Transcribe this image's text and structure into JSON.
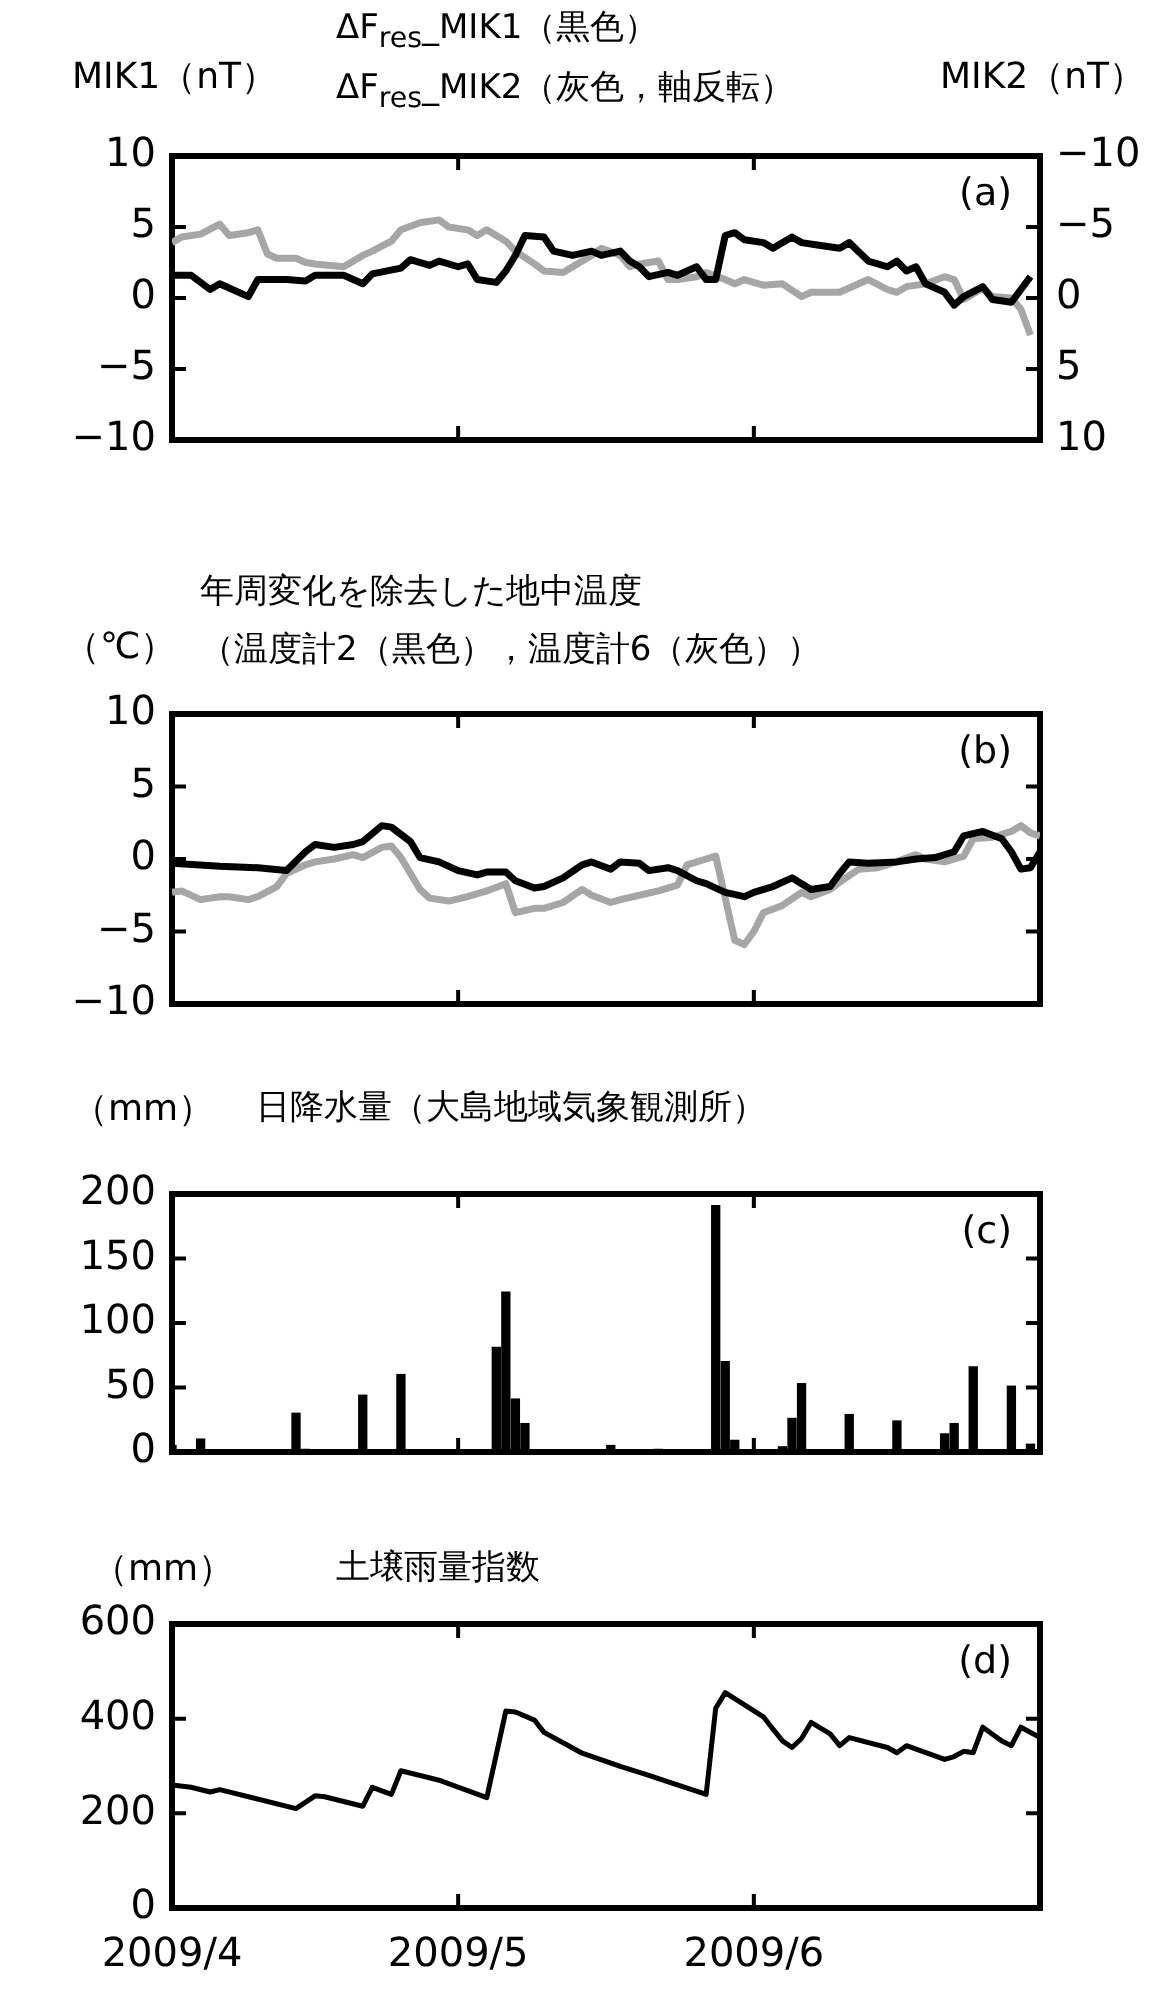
{
  "chart_data": [
    {
      "type": "line",
      "title": "ΔF$_{res}$_MIK1（黒色）",
      "subtitle": "ΔF$_{res}$_MIK2（灰色，軸反転）",
      "ylabel": "MIK1（nT）",
      "y2label": "MIK2（nT）",
      "annotations": [
        "(a)"
      ],
      "marker": "none",
      "tick_labels": "y",
      "xlim": [
        "2009-04-01",
        "2009-07-01"
      ],
      "xticks": [
        {
          "value": "2009-05-01",
          "label": null
        },
        {
          "value": "2009-06-01",
          "label": null
        }
      ],
      "ylim": [
        -10,
        10
      ],
      "yticks": [
        -10,
        -5,
        0,
        5,
        10
      ],
      "y2lim": [
        10,
        -10
      ],
      "y2ticks": [
        -10,
        -5,
        0,
        5,
        10
      ],
      "series": [
        {
          "color": "#000000",
          "x": [
            "2009-04-01",
            "2009-04-03",
            "2009-04-05",
            "2009-04-06",
            "2009-04-09",
            "2009-04-10",
            "2009-04-13",
            "2009-04-15",
            "2009-04-16",
            "2009-04-19",
            "2009-04-21",
            "2009-04-22",
            "2009-04-25",
            "2009-04-26",
            "2009-04-28",
            "2009-04-29",
            "2009-05-01",
            "2009-05-02",
            "2009-05-03",
            "2009-05-05",
            "2009-05-06",
            "2009-05-07",
            "2009-05-08",
            "2009-05-10",
            "2009-05-11",
            "2009-05-13",
            "2009-05-15",
            "2009-05-16",
            "2009-05-18",
            "2009-05-19",
            "2009-05-20",
            "2009-05-21",
            "2009-05-23",
            "2009-05-24",
            "2009-05-26",
            "2009-05-27",
            "2009-05-28",
            "2009-05-29",
            "2009-05-30",
            "2009-05-31",
            "2009-06-02",
            "2009-06-03",
            "2009-06-05",
            "2009-06-06",
            "2009-06-08",
            "2009-06-10",
            "2009-06-11",
            "2009-06-13",
            "2009-06-15",
            "2009-06-16",
            "2009-06-17",
            "2009-06-18",
            "2009-06-19",
            "2009-06-21",
            "2009-06-22",
            "2009-06-23",
            "2009-06-25",
            "2009-06-26",
            "2009-06-28",
            "2009-06-29",
            "2009-06-30"
          ],
          "values": [
            1.6,
            1.6,
            0.6,
            1.0,
            0.1,
            1.3,
            1.3,
            1.2,
            1.6,
            1.6,
            1.0,
            1.7,
            2.1,
            2.7,
            2.3,
            2.6,
            2.2,
            2.4,
            1.3,
            1.1,
            1.9,
            3.0,
            4.4,
            4.3,
            3.3,
            3.0,
            3.3,
            3.0,
            3.3,
            2.6,
            2.2,
            1.5,
            1.8,
            1.6,
            2.2,
            1.3,
            1.3,
            4.4,
            4.6,
            4.1,
            3.9,
            3.5,
            4.3,
            3.9,
            3.7,
            3.5,
            3.9,
            2.6,
            2.2,
            2.6,
            1.9,
            2.2,
            1.0,
            0.4,
            -0.5,
            0.1,
            0.8,
            -0.1,
            -0.3,
            0.6,
            1.5
          ]
        },
        {
          "color": "#a6a6a6",
          "axis": "y2",
          "x": [
            "2009-04-01",
            "2009-04-02",
            "2009-04-04",
            "2009-04-06",
            "2009-04-07",
            "2009-04-09",
            "2009-04-10",
            "2009-04-11",
            "2009-04-12",
            "2009-04-14",
            "2009-04-15",
            "2009-04-16",
            "2009-04-19",
            "2009-04-21",
            "2009-04-22",
            "2009-04-24",
            "2009-04-25",
            "2009-04-27",
            "2009-04-29",
            "2009-04-30",
            "2009-05-02",
            "2009-05-03",
            "2009-05-04",
            "2009-05-06",
            "2009-05-07",
            "2009-05-09",
            "2009-05-10",
            "2009-05-12",
            "2009-05-13",
            "2009-05-15",
            "2009-05-16",
            "2009-05-18",
            "2009-05-19",
            "2009-05-20",
            "2009-05-22",
            "2009-05-23",
            "2009-05-24",
            "2009-05-26",
            "2009-05-27",
            "2009-05-29",
            "2009-05-30",
            "2009-05-31",
            "2009-06-02",
            "2009-06-04",
            "2009-06-06",
            "2009-06-07",
            "2009-06-10",
            "2009-06-11",
            "2009-06-13",
            "2009-06-15",
            "2009-06-16",
            "2009-06-17",
            "2009-06-19",
            "2009-06-21",
            "2009-06-22",
            "2009-06-23",
            "2009-06-25",
            "2009-06-26",
            "2009-06-28",
            "2009-06-29",
            "2009-06-30"
          ],
          "values": [
            -3.9,
            -4.3,
            -4.5,
            -5.2,
            -4.4,
            -4.6,
            -4.8,
            -3.1,
            -2.8,
            -2.8,
            -2.5,
            -2.4,
            -2.2,
            -3.0,
            -3.3,
            -4.0,
            -4.8,
            -5.3,
            -5.5,
            -5.0,
            -4.8,
            -4.4,
            -4.8,
            -4.0,
            -3.3,
            -2.4,
            -1.9,
            -1.8,
            -2.2,
            -3.0,
            -3.5,
            -3.0,
            -2.2,
            -2.4,
            -2.6,
            -1.3,
            -1.3,
            -1.5,
            -1.8,
            -1.3,
            -1.0,
            -1.3,
            -0.9,
            -1.0,
            -0.1,
            -0.4,
            -0.4,
            -0.7,
            -1.3,
            -0.6,
            -0.4,
            -0.8,
            -1.0,
            -1.5,
            -1.3,
            0.1,
            -0.7,
            -0.1,
            0,
            0.8,
            2.6
          ]
        }
      ]
    },
    {
      "type": "line",
      "title": "年周変化を除去した地中温度",
      "subtitle": "（温度計2（黒色），温度計6（灰色））",
      "ylabel": "（℃）",
      "annotations": [
        "(b)"
      ],
      "marker": "none",
      "tick_labels": "y",
      "xlim": [
        "2009-04-01",
        "2009-07-01"
      ],
      "xticks": [
        {
          "value": "2009-05-01",
          "label": null
        },
        {
          "value": "2009-06-01",
          "label": null
        }
      ],
      "ylim": [
        -10,
        10
      ],
      "yticks": [
        -10,
        -5,
        0,
        5,
        10
      ],
      "series": [
        {
          "color": "#000000",
          "x": [
            "2009-04-01",
            "2009-04-06",
            "2009-04-10",
            "2009-04-13",
            "2009-04-15",
            "2009-04-16",
            "2009-04-18",
            "2009-04-20",
            "2009-04-21",
            "2009-04-23",
            "2009-04-24",
            "2009-04-26",
            "2009-04-27",
            "2009-04-29",
            "2009-05-01",
            "2009-05-03",
            "2009-05-04",
            "2009-05-06",
            "2009-05-07",
            "2009-05-09",
            "2009-05-10",
            "2009-05-12",
            "2009-05-14",
            "2009-05-15",
            "2009-05-17",
            "2009-05-18",
            "2009-05-20",
            "2009-05-21",
            "2009-05-23",
            "2009-05-24",
            "2009-05-26",
            "2009-05-27",
            "2009-05-29",
            "2009-05-31",
            "2009-06-01",
            "2009-06-03",
            "2009-06-05",
            "2009-06-06",
            "2009-06-07",
            "2009-06-09",
            "2009-06-10",
            "2009-06-11",
            "2009-06-13",
            "2009-06-16",
            "2009-06-18",
            "2009-06-20",
            "2009-06-22",
            "2009-06-23",
            "2009-06-25",
            "2009-06-27",
            "2009-06-28",
            "2009-06-29",
            "2009-06-30",
            "2009-07-01"
          ],
          "values": [
            -0.3,
            -0.5,
            -0.6,
            -0.8,
            0.5,
            1.0,
            0.8,
            1.0,
            1.2,
            2.3,
            2.2,
            1.2,
            0.1,
            -0.2,
            -0.8,
            -1.1,
            -0.9,
            -0.9,
            -1.5,
            -2.0,
            -1.9,
            -1.3,
            -0.4,
            -0.2,
            -0.7,
            -0.2,
            -0.3,
            -0.8,
            -0.6,
            -0.8,
            -1.5,
            -1.7,
            -2.3,
            -2.6,
            -2.3,
            -1.9,
            -1.3,
            -1.7,
            -2.1,
            -1.9,
            -1.0,
            -0.2,
            -0.3,
            -0.2,
            0,
            0.1,
            0.5,
            1.6,
            1.9,
            1.4,
            0.5,
            -0.7,
            -0.6,
            0.5
          ]
        },
        {
          "color": "#a6a6a6",
          "x": [
            "2009-04-01",
            "2009-04-02",
            "2009-04-04",
            "2009-04-06",
            "2009-04-07",
            "2009-04-09",
            "2009-04-10",
            "2009-04-12",
            "2009-04-13",
            "2009-04-15",
            "2009-04-16",
            "2009-04-18",
            "2009-04-20",
            "2009-04-21",
            "2009-04-23",
            "2009-04-24",
            "2009-04-25",
            "2009-04-27",
            "2009-04-28",
            "2009-04-30",
            "2009-05-02",
            "2009-05-04",
            "2009-05-06",
            "2009-05-07",
            "2009-05-09",
            "2009-05-10",
            "2009-05-12",
            "2009-05-14",
            "2009-05-15",
            "2009-05-17",
            "2009-05-18",
            "2009-05-20",
            "2009-05-22",
            "2009-05-24",
            "2009-05-25",
            "2009-05-27",
            "2009-05-28",
            "2009-05-30",
            "2009-05-31",
            "2009-06-01",
            "2009-06-02",
            "2009-06-04",
            "2009-06-06",
            "2009-06-07",
            "2009-06-09",
            "2009-06-10",
            "2009-06-12",
            "2009-06-14",
            "2009-06-15",
            "2009-06-18",
            "2009-06-19",
            "2009-06-21",
            "2009-06-23",
            "2009-06-24",
            "2009-06-26",
            "2009-06-28",
            "2009-06-29",
            "2009-06-30",
            "2009-07-01"
          ],
          "values": [
            -2.3,
            -2.2,
            -2.8,
            -2.6,
            -2.6,
            -2.8,
            -2.6,
            -1.9,
            -1.0,
            -0.4,
            -0.2,
            0,
            0.3,
            0.1,
            0.8,
            0.9,
            0.1,
            -2.1,
            -2.7,
            -2.9,
            -2.6,
            -2.2,
            -1.7,
            -3.7,
            -3.4,
            -3.4,
            -3.0,
            -2.1,
            -2.5,
            -3.0,
            -2.8,
            -2.5,
            -2.2,
            -1.8,
            -0.4,
            0,
            0.2,
            -5.6,
            -5.9,
            -5.0,
            -3.7,
            -3.2,
            -2.3,
            -2.6,
            -2.1,
            -1.6,
            -0.7,
            -0.6,
            -0.4,
            0.3,
            0,
            -0.2,
            0.2,
            1.4,
            1.5,
            1.9,
            2.3,
            1.8,
            1.6
          ]
        }
      ]
    },
    {
      "type": "bar",
      "title": "日降水量（大島地域気象観測所）",
      "ylabel": "（mm）",
      "annotations": [
        "(c)"
      ],
      "color": "#000000",
      "tick_labels": "y",
      "xlim": [
        "2009-04-01",
        "2009-07-01"
      ],
      "xticks": [
        {
          "value": "2009-05-01",
          "label": null
        },
        {
          "value": "2009-06-01",
          "label": null
        }
      ],
      "ylim": [
        0,
        200
      ],
      "yticks": [
        0,
        50,
        100,
        150,
        200
      ],
      "x": [
        "2009-04-01",
        "2009-04-04",
        "2009-04-14",
        "2009-04-15",
        "2009-04-21",
        "2009-04-25",
        "2009-05-05",
        "2009-05-06",
        "2009-05-07",
        "2009-05-08",
        "2009-05-17",
        "2009-05-22",
        "2009-05-28",
        "2009-05-29",
        "2009-05-30",
        "2009-06-04",
        "2009-06-05",
        "2009-06-06",
        "2009-06-11",
        "2009-06-16",
        "2009-06-21",
        "2009-06-22",
        "2009-06-24",
        "2009-06-28",
        "2009-06-30"
      ],
      "values": [
        5,
        10,
        30,
        2,
        44,
        60,
        81,
        124,
        41,
        22,
        5,
        2,
        191,
        70,
        9,
        4,
        26,
        53,
        29,
        24,
        14,
        22,
        66,
        51,
        6
      ]
    },
    {
      "type": "line",
      "title": "土壌雨量指数",
      "ylabel": "（mm）",
      "annotations": [
        "(d)"
      ],
      "marker": "none",
      "color": "#000000",
      "xlim": [
        "2009-04-01",
        "2009-07-01"
      ],
      "xticks": [
        {
          "value": "2009-04-01",
          "label": "2009/4"
        },
        {
          "value": "2009-05-01",
          "label": "2009/5"
        },
        {
          "value": "2009-06-01",
          "label": "2009/6"
        }
      ],
      "ylim": [
        0,
        600
      ],
      "yticks": [
        0,
        200,
        400,
        600
      ],
      "x": [
        "2009-04-01",
        "2009-04-03",
        "2009-04-05",
        "2009-04-06",
        "2009-04-14",
        "2009-04-16",
        "2009-04-17",
        "2009-04-21",
        "2009-04-22",
        "2009-04-24",
        "2009-04-25",
        "2009-04-29",
        "2009-05-04",
        "2009-05-06",
        "2009-05-07",
        "2009-05-09",
        "2009-05-10",
        "2009-05-12",
        "2009-05-14",
        "2009-05-18",
        "2009-05-21",
        "2009-05-27",
        "2009-05-28",
        "2009-05-29",
        "2009-06-02",
        "2009-06-03",
        "2009-06-04",
        "2009-06-05",
        "2009-06-06",
        "2009-06-07",
        "2009-06-09",
        "2009-06-10",
        "2009-06-11",
        "2009-06-15",
        "2009-06-16",
        "2009-06-17",
        "2009-06-21",
        "2009-06-22",
        "2009-06-23",
        "2009-06-24",
        "2009-06-25",
        "2009-06-27",
        "2009-06-28",
        "2009-06-29",
        "2009-07-01"
      ],
      "values": [
        260,
        255,
        245,
        250,
        210,
        237,
        235,
        215,
        255,
        240,
        290,
        270,
        233,
        416,
        414,
        397,
        371,
        349,
        327,
        299,
        280,
        240,
        422,
        455,
        404,
        378,
        353,
        339,
        358,
        392,
        368,
        343,
        360,
        339,
        328,
        343,
        314,
        320,
        331,
        328,
        382,
        353,
        343,
        382,
        360
      ]
    }
  ]
}
